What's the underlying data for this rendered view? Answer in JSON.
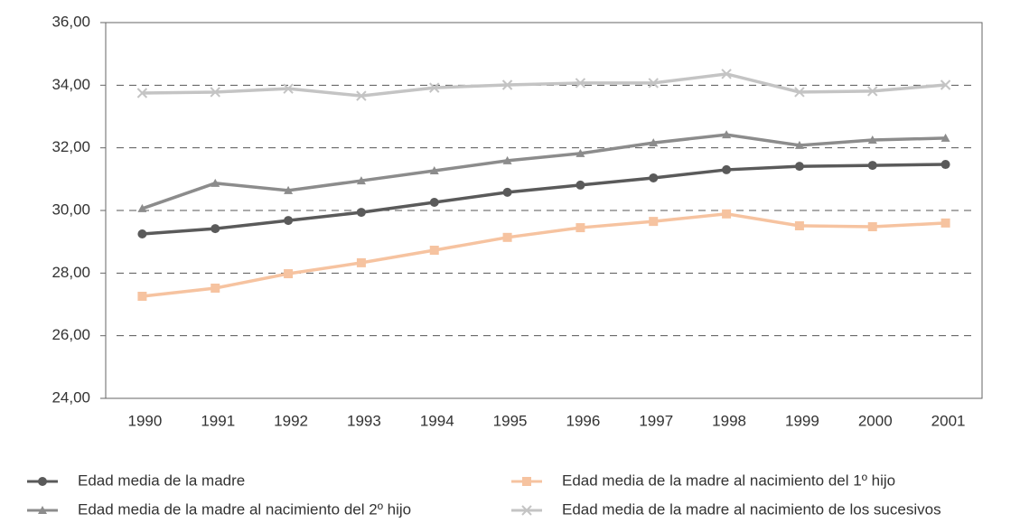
{
  "chart_data": {
    "type": "line",
    "categories": [
      "1990",
      "1991",
      "1992",
      "1993",
      "1994",
      "1995",
      "1996",
      "1997",
      "1998",
      "1999",
      "2000",
      "2001"
    ],
    "series": [
      {
        "name": "Edad media de la madre",
        "color": "#5a5a5a",
        "marker": "circle",
        "values": [
          29.25,
          29.42,
          29.68,
          29.94,
          30.26,
          30.58,
          30.81,
          31.04,
          31.3,
          31.41,
          31.44,
          31.47
        ]
      },
      {
        "name": "Edad media de la madre al nacimiento del 1º hijo",
        "color": "#f6c3a0",
        "marker": "square",
        "values": [
          27.26,
          27.52,
          27.98,
          28.33,
          28.73,
          29.14,
          29.45,
          29.65,
          29.89,
          29.51,
          29.48,
          29.6
        ]
      },
      {
        "name": "Edad media de la madre al nacimiento del 2º hijo",
        "color": "#8c8c8c",
        "marker": "triangle",
        "values": [
          30.06,
          30.87,
          30.64,
          30.95,
          31.27,
          31.59,
          31.82,
          32.16,
          32.42,
          32.08,
          32.25,
          32.31
        ]
      },
      {
        "name": "Edad media de la madre al nacimiento de los sucesivos",
        "color": "#c4c4c4",
        "marker": "cross",
        "values": [
          33.75,
          33.78,
          33.89,
          33.66,
          33.92,
          34.01,
          34.07,
          34.07,
          34.36,
          33.78,
          33.81,
          34.01
        ]
      }
    ],
    "ylim": [
      24,
      36
    ],
    "yticks": [
      {
        "value": 24,
        "label": "24,00"
      },
      {
        "value": 26,
        "label": "26,00"
      },
      {
        "value": 28,
        "label": "28,00"
      },
      {
        "value": 30,
        "label": "30,00"
      },
      {
        "value": 32,
        "label": "32,00"
      },
      {
        "value": 34,
        "label": "34,00"
      },
      {
        "value": 36,
        "label": "36,00"
      }
    ],
    "grid": true
  }
}
